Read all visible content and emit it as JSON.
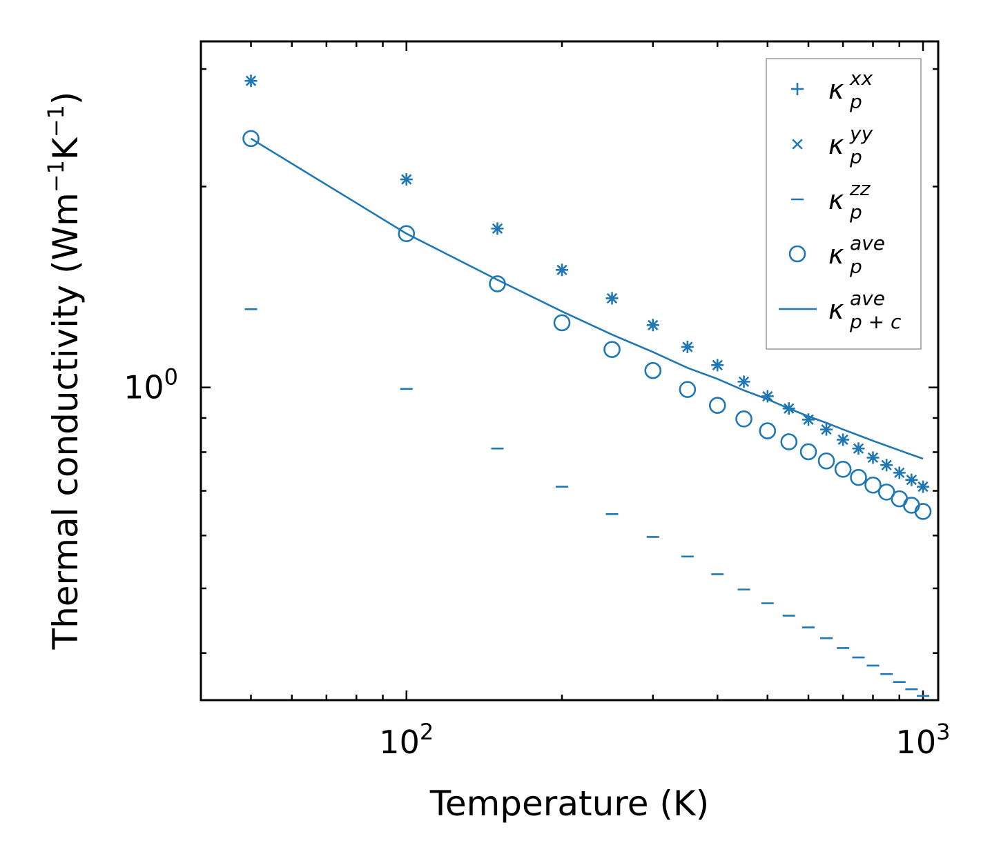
{
  "chart_data": {
    "type": "scatter",
    "xscale": "log",
    "yscale": "log",
    "xlabel": "Temperature (K)",
    "ylabel": "Thermal conductivity (Wm−1K−1)",
    "ylabel_parts": {
      "base": "Thermal conductivity (Wm",
      "sup1": "−1",
      "mid": "K",
      "sup2": "−1",
      "end": ")"
    },
    "xlim": [
      40,
      1070
    ],
    "ylim": [
      0.34,
      3.3
    ],
    "xticks": [
      {
        "base": "10",
        "exp": "2",
        "value": 100
      },
      {
        "base": "10",
        "exp": "3",
        "value": 1000
      }
    ],
    "yticks": [
      {
        "base": "10",
        "exp": "0",
        "value": 1
      }
    ],
    "x": [
      50,
      100,
      150,
      200,
      250,
      300,
      350,
      400,
      450,
      500,
      550,
      600,
      650,
      700,
      750,
      800,
      850,
      900,
      950,
      1000
    ],
    "series": [
      {
        "name": "κp^xx",
        "label": {
          "base": "κ",
          "sub": "p",
          "sup": "xx"
        },
        "marker": "plus",
        "values": [
          2.88,
          2.05,
          1.73,
          1.5,
          1.36,
          1.24,
          1.15,
          1.08,
          1.02,
          0.97,
          0.93,
          0.895,
          0.865,
          0.835,
          0.81,
          0.785,
          0.765,
          0.745,
          0.727,
          0.71
        ]
      },
      {
        "name": "κp^yy",
        "label": {
          "base": "κ",
          "sub": "p",
          "sup": "yy"
        },
        "marker": "x",
        "values": [
          2.88,
          2.05,
          1.73,
          1.5,
          1.36,
          1.24,
          1.15,
          1.08,
          1.02,
          0.97,
          0.93,
          0.895,
          0.865,
          0.835,
          0.81,
          0.785,
          0.765,
          0.745,
          0.727,
          0.71
        ]
      },
      {
        "name": "κp^zz",
        "label": {
          "base": "κ",
          "sub": "p",
          "sup": "zz"
        },
        "marker": "hline",
        "values": [
          1.31,
          0.995,
          0.81,
          0.71,
          0.646,
          0.597,
          0.558,
          0.525,
          0.498,
          0.475,
          0.455,
          0.437,
          0.421,
          0.407,
          0.394,
          0.383,
          0.372,
          0.362,
          0.353,
          0.345
        ]
      },
      {
        "name": "κp^ave",
        "label": {
          "base": "κ",
          "sub": "p",
          "sup": "ave"
        },
        "marker": "circle",
        "values": [
          2.36,
          1.7,
          1.43,
          1.25,
          1.14,
          1.06,
          0.993,
          0.94,
          0.897,
          0.861,
          0.829,
          0.801,
          0.776,
          0.754,
          0.733,
          0.714,
          0.697,
          0.681,
          0.666,
          0.652
        ]
      },
      {
        "name": "κp+c^ave",
        "label": {
          "base": "κ",
          "sub": "p + c",
          "sup": "ave"
        },
        "marker": "line",
        "values": [
          2.36,
          1.7,
          1.45,
          1.3,
          1.2,
          1.13,
          1.07,
          1.03,
          0.99,
          0.96,
          0.93,
          0.905,
          0.885,
          0.865,
          0.848,
          0.832,
          0.818,
          0.805,
          0.793,
          0.782
        ]
      }
    ],
    "legend_position": "top-right",
    "color": "#1f77b4",
    "grid": false
  }
}
